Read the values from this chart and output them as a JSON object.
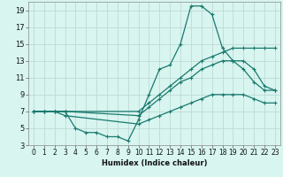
{
  "title": "",
  "xlabel": "Humidex (Indice chaleur)",
  "bg_color": "#d8f5f0",
  "grid_color": "#c0dad6",
  "line_color": "#1a7a6e",
  "xlim": [
    -0.5,
    23.5
  ],
  "ylim": [
    3,
    20
  ],
  "xticks": [
    0,
    1,
    2,
    3,
    4,
    5,
    6,
    7,
    8,
    9,
    10,
    11,
    12,
    13,
    14,
    15,
    16,
    17,
    18,
    19,
    20,
    21,
    22,
    23
  ],
  "yticks": [
    3,
    5,
    7,
    9,
    11,
    13,
    15,
    17,
    19
  ],
  "series": [
    {
      "x": [
        0,
        1,
        2,
        3,
        4,
        5,
        6,
        7,
        8,
        9,
        10,
        11,
        12,
        13,
        14,
        15,
        16,
        17,
        18,
        19,
        20,
        21,
        22,
        23
      ],
      "y": [
        7,
        7,
        7,
        7,
        5,
        4.5,
        4.5,
        4,
        4,
        3.5,
        6,
        9,
        12,
        12.5,
        15,
        19.5,
        19.5,
        18.5,
        14.5,
        13,
        12,
        10.5,
        9.5,
        9.5
      ]
    },
    {
      "x": [
        0,
        1,
        2,
        3,
        10,
        11,
        12,
        13,
        14,
        15,
        16,
        17,
        18,
        19,
        20,
        21,
        22,
        23
      ],
      "y": [
        7,
        7,
        7,
        7,
        7,
        8,
        9,
        10,
        11,
        12,
        13,
        13.5,
        14,
        14.5,
        14.5,
        14.5,
        14.5,
        14.5
      ]
    },
    {
      "x": [
        0,
        1,
        2,
        3,
        10,
        11,
        12,
        13,
        14,
        15,
        16,
        17,
        18,
        19,
        20,
        21,
        22,
        23
      ],
      "y": [
        7,
        7,
        7,
        7,
        6.5,
        7.5,
        8.5,
        9.5,
        10.5,
        11,
        12,
        12.5,
        13,
        13,
        13,
        12,
        10,
        9.5
      ]
    },
    {
      "x": [
        0,
        1,
        2,
        3,
        10,
        11,
        12,
        13,
        14,
        15,
        16,
        17,
        18,
        19,
        20,
        21,
        22,
        23
      ],
      "y": [
        7,
        7,
        7,
        6.5,
        5.5,
        6,
        6.5,
        7,
        7.5,
        8,
        8.5,
        9,
        9,
        9,
        9,
        8.5,
        8,
        8
      ]
    }
  ]
}
